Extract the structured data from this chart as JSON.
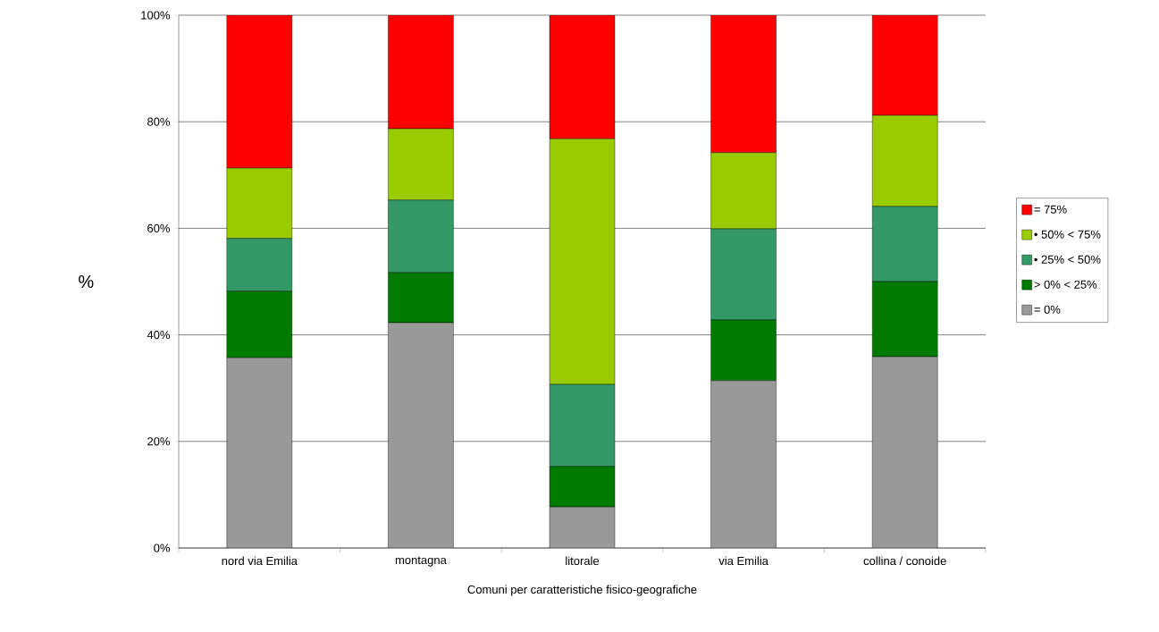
{
  "chart_data": {
    "type": "bar",
    "stacked": true,
    "xlabel": "Comuni per caratteristiche fisico-geografiche",
    "ylabel": "%",
    "categories": [
      "nord via Emilia",
      "montagna",
      "litorale",
      "via Emilia",
      "collina / conoide"
    ],
    "series": [
      {
        "name": "= 0%",
        "color": "#999999",
        "values": [
          35.7,
          42.3,
          7.7,
          31.4,
          35.9
        ]
      },
      {
        "name": "> 0% < 25%",
        "color": "#007a00",
        "values": [
          12.5,
          9.4,
          7.6,
          11.4,
          14.1
        ]
      },
      {
        "name": "• 25% < 50%",
        "color": "#339966",
        "values": [
          9.9,
          13.6,
          15.4,
          17.1,
          14.1
        ]
      },
      {
        "name": "• 50% < 75%",
        "color": "#99cc00",
        "values": [
          13.2,
          13.4,
          46.1,
          14.3,
          17.1
        ]
      },
      {
        "name": "= 75%",
        "color": "#ff0000",
        "values": [
          28.7,
          21.3,
          23.2,
          25.8,
          18.8
        ]
      }
    ],
    "ylim": [
      0,
      100
    ],
    "yticks": [
      {
        "value": 0,
        "label": "0%"
      },
      {
        "value": 20,
        "label": "20%"
      },
      {
        "value": 40,
        "label": "40%"
      },
      {
        "value": 60,
        "label": "60%"
      },
      {
        "value": 80,
        "label": "80%"
      },
      {
        "value": 100,
        "label": "100%"
      }
    ],
    "grid": "y",
    "legend": "right"
  }
}
